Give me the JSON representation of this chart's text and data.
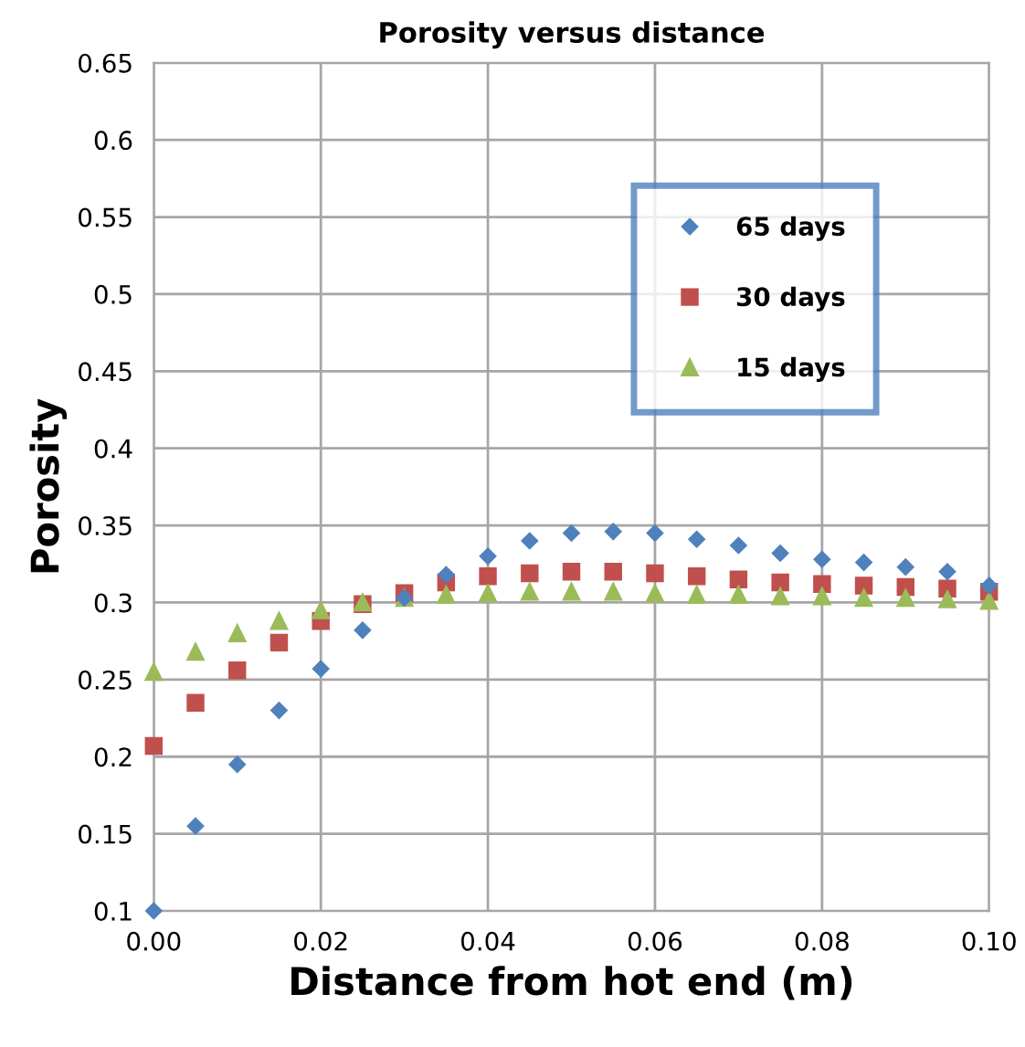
{
  "chart_data": {
    "type": "scatter",
    "title": "Porosity versus distance",
    "xlabel": "Distance from hot end (m)",
    "ylabel": "Porosity",
    "x": [
      0,
      0.005,
      0.01,
      0.015,
      0.02,
      0.025,
      0.03,
      0.035,
      0.04,
      0.045,
      0.05,
      0.055,
      0.06,
      0.065,
      0.07,
      0.075,
      0.08,
      0.085,
      0.09,
      0.095,
      0.1
    ],
    "series": [
      {
        "name": "65 days",
        "color": "#4f81bd",
        "marker": "diamond",
        "values": [
          0.1,
          0.155,
          0.195,
          0.23,
          0.257,
          0.282,
          0.303,
          0.318,
          0.33,
          0.34,
          0.345,
          0.346,
          0.345,
          0.341,
          0.337,
          0.332,
          0.328,
          0.326,
          0.323,
          0.32,
          0.311
        ]
      },
      {
        "name": "30 days",
        "color": "#c0504d",
        "marker": "square",
        "values": [
          0.207,
          0.235,
          0.256,
          0.274,
          0.288,
          0.299,
          0.306,
          0.313,
          0.317,
          0.319,
          0.32,
          0.32,
          0.319,
          0.317,
          0.315,
          0.313,
          0.312,
          0.311,
          0.31,
          0.309,
          0.307
        ]
      },
      {
        "name": "15 days",
        "color": "#9bbb59",
        "marker": "triangle",
        "values": [
          0.255,
          0.268,
          0.28,
          0.288,
          0.295,
          0.3,
          0.303,
          0.305,
          0.306,
          0.307,
          0.307,
          0.307,
          0.306,
          0.305,
          0.305,
          0.304,
          0.304,
          0.303,
          0.303,
          0.302,
          0.301
        ]
      }
    ],
    "xlim": [
      0,
      0.1
    ],
    "xticks": [
      {
        "value": 0,
        "label": "0.00"
      },
      {
        "value": 0.02,
        "label": "0.02"
      },
      {
        "value": 0.04,
        "label": "0.04"
      },
      {
        "value": 0.06,
        "label": "0.06"
      },
      {
        "value": 0.08,
        "label": "0.08"
      },
      {
        "value": 0.1,
        "label": "0.10"
      }
    ],
    "ylim": [
      0.1,
      0.65
    ],
    "yticks": [
      0.1,
      0.15,
      0.2,
      0.25,
      0.3,
      0.35,
      0.4,
      0.45,
      0.5,
      0.55,
      0.6,
      0.65
    ],
    "grid": true,
    "legend": "top right"
  }
}
